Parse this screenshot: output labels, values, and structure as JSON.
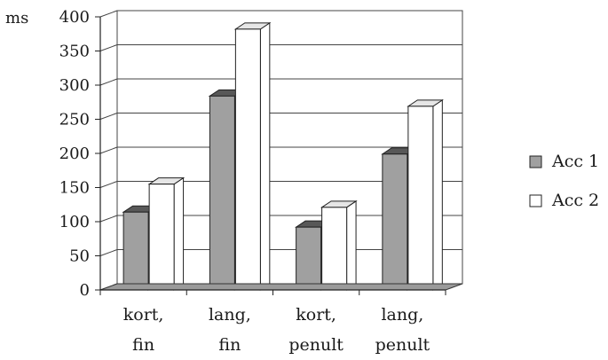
{
  "chart_data": {
    "type": "bar",
    "ylabel": "ms",
    "ylim": [
      0,
      400
    ],
    "yticks": [
      0,
      50,
      100,
      150,
      200,
      250,
      300,
      350,
      400
    ],
    "grid": true,
    "legend_position": "right",
    "categories": [
      [
        "kort,",
        "fin"
      ],
      [
        "lang,",
        "fin"
      ],
      [
        "kort,",
        "penult"
      ],
      [
        "lang,",
        "penult"
      ]
    ],
    "series": [
      {
        "name": "Acc 1",
        "values": [
          114,
          284,
          92,
          199
        ],
        "color": "#a0a0a0"
      },
      {
        "name": "Acc 2",
        "values": [
          155,
          382,
          121,
          269
        ],
        "color": "#ffffff"
      }
    ]
  }
}
